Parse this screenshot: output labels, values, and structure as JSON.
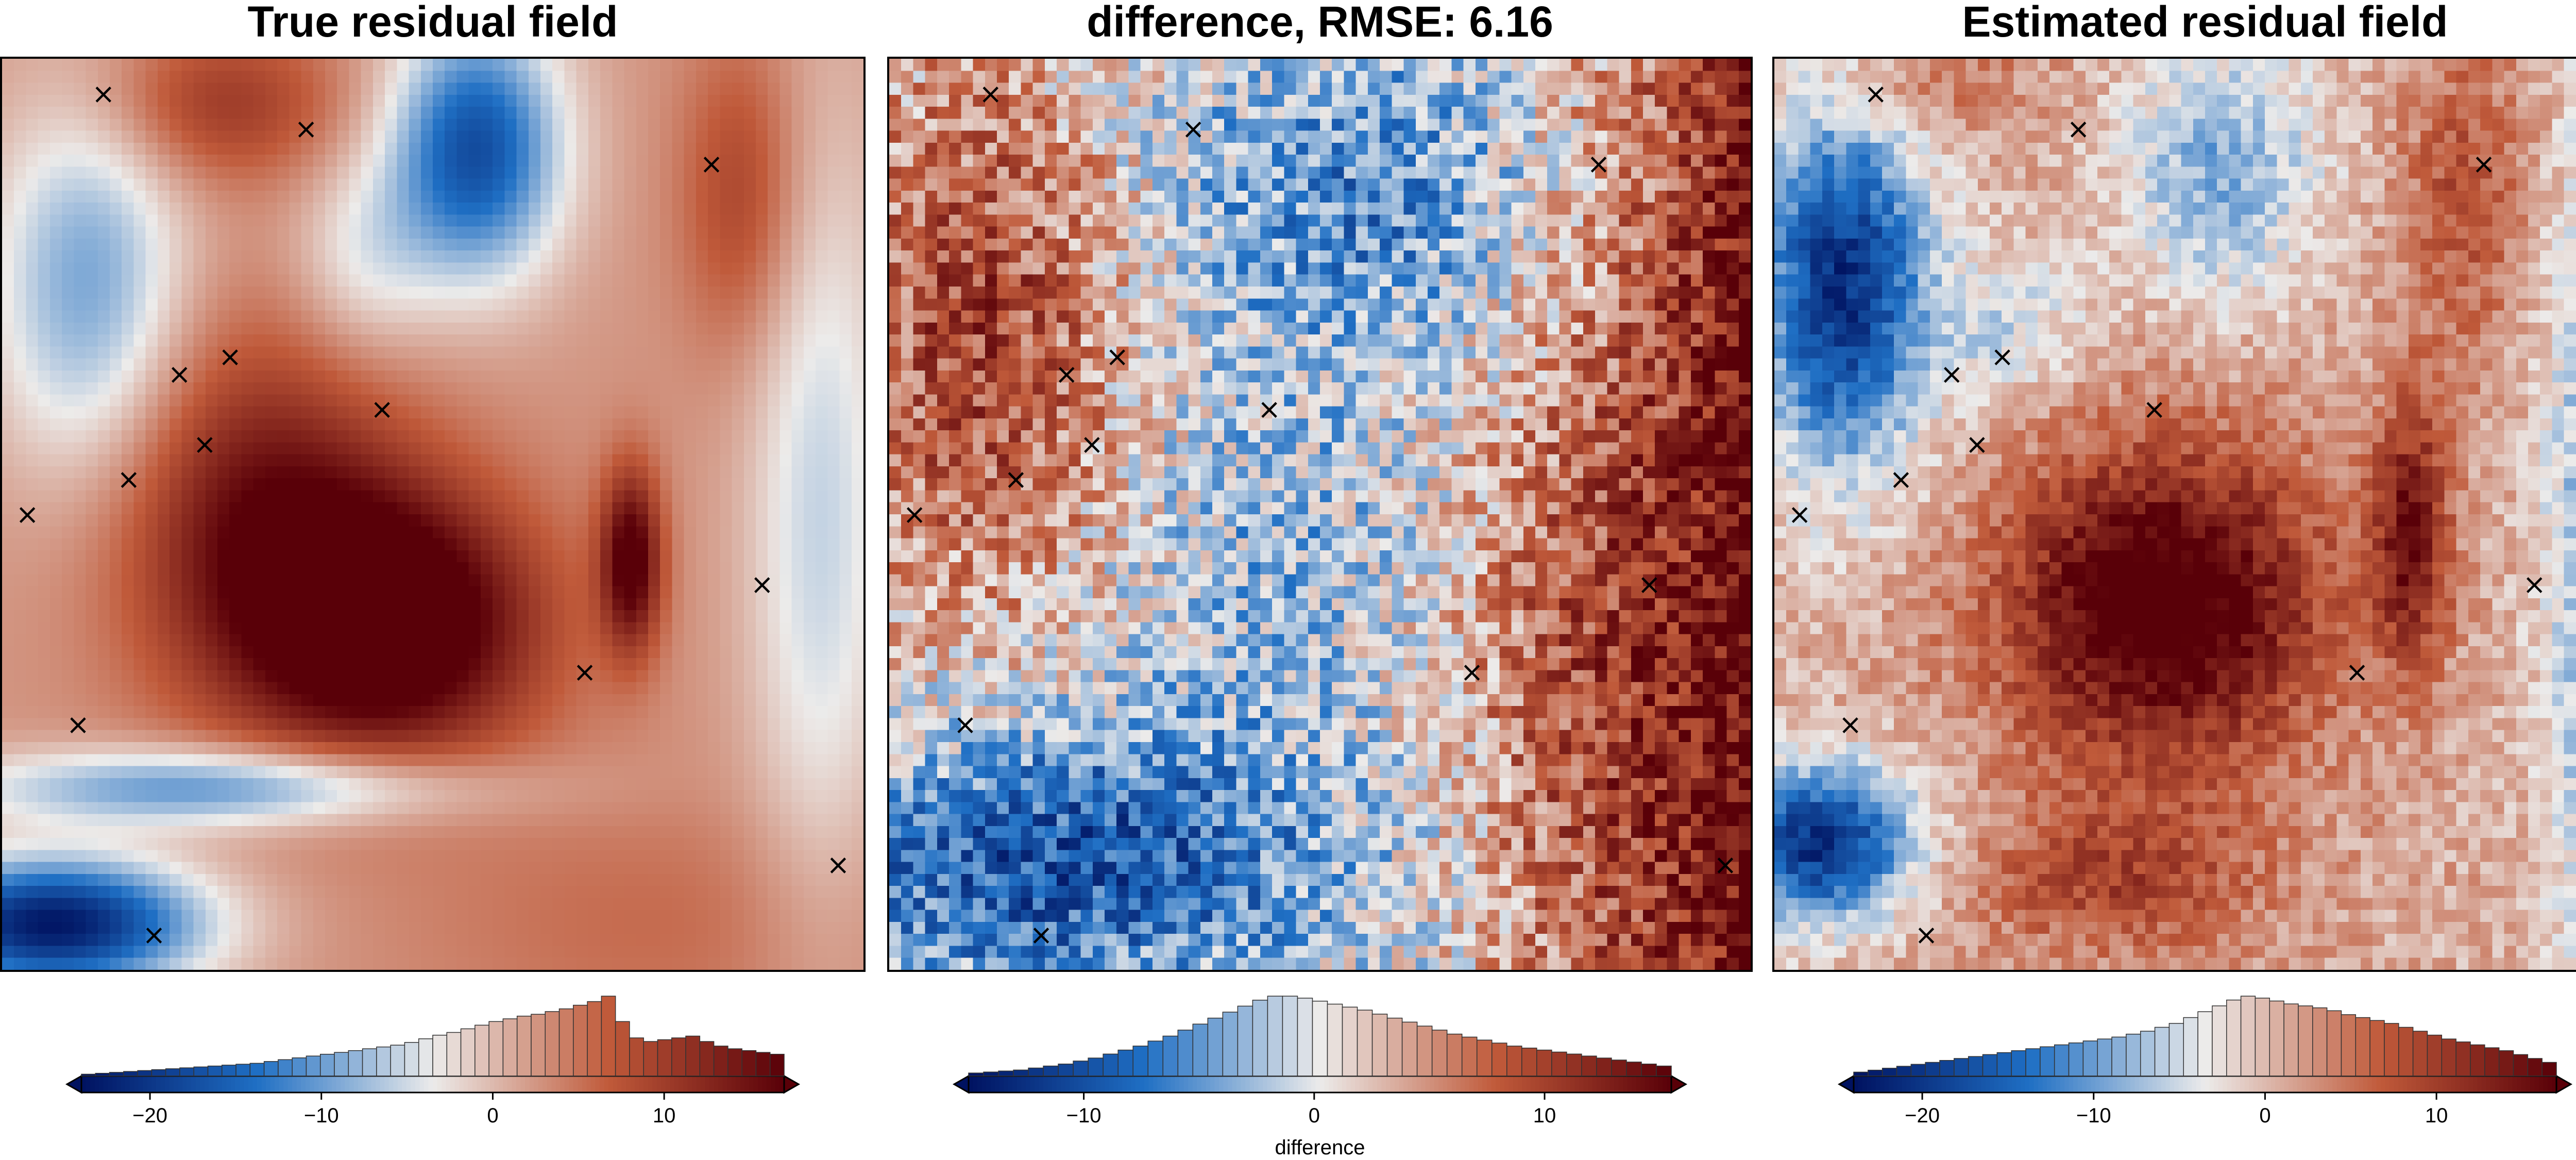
{
  "figure": {
    "panels": [
      {
        "id": "true",
        "title": "True residual field"
      },
      {
        "id": "diff",
        "title": "difference, RMSE: 6.16"
      },
      {
        "id": "est",
        "title": "Estimated residual field"
      }
    ],
    "colormap": "vik (blue-white-red diverging)",
    "colors": {
      "dark_blue": "#001260",
      "mid_blue": "#1f6fc4",
      "light": "#ecebea",
      "mid_red": "#c05a3a",
      "dark_red": "#590008"
    },
    "marker_symbol": "×"
  },
  "chart_data": [
    {
      "type": "heatmap",
      "title": "True residual field",
      "grid": false,
      "colorbar": {
        "range": [
          -24,
          17
        ],
        "ticks": [
          -20,
          -10,
          0,
          10
        ],
        "tick_labels": [
          "−20",
          "−10",
          "0",
          "10"
        ],
        "label": "",
        "extend": "both",
        "histogram": [
          2,
          3,
          4,
          5,
          6,
          7,
          8,
          9,
          10,
          11,
          12,
          13,
          14,
          16,
          18,
          20,
          22,
          24,
          26,
          28,
          30,
          32,
          34,
          37,
          41,
          45,
          48,
          52,
          56,
          60,
          63,
          66,
          68,
          71,
          74,
          78,
          82,
          88,
          60,
          42,
          38,
          40,
          42,
          44,
          38,
          33,
          30,
          28,
          26,
          24
        ]
      },
      "points": [
        [
          -21,
          19
        ],
        [
          -13,
          18
        ],
        [
          3,
          17
        ],
        [
          -18,
          11
        ],
        [
          -16,
          11.5
        ],
        [
          -10,
          10
        ],
        [
          -17,
          9
        ],
        [
          -20,
          8
        ],
        [
          -24,
          7
        ],
        [
          5,
          5
        ],
        [
          -2,
          2.5
        ],
        [
          -22,
          1
        ],
        [
          8,
          -3
        ],
        [
          -19,
          -5
        ]
      ]
    },
    {
      "type": "heatmap",
      "title": "difference, RMSE: 6.16",
      "grid": false,
      "colorbar": {
        "range": [
          -15,
          15.5
        ],
        "ticks": [
          -10,
          0,
          10
        ],
        "tick_labels": [
          "−10",
          "0",
          "10"
        ],
        "label": "difference",
        "extend": "both",
        "histogram": [
          3,
          4,
          5,
          6,
          8,
          10,
          12,
          15,
          18,
          22,
          26,
          30,
          35,
          40,
          46,
          52,
          58,
          64,
          70,
          76,
          80,
          80,
          78,
          75,
          72,
          69,
          66,
          62,
          58,
          54,
          50,
          46,
          42,
          39,
          36,
          33,
          30,
          28,
          26,
          24,
          22,
          20,
          18,
          16,
          14,
          12,
          10
        ]
      },
      "points": [
        [
          -21,
          19
        ],
        [
          -13,
          18
        ],
        [
          3,
          17
        ],
        [
          -18,
          11
        ],
        [
          -16,
          11.5
        ],
        [
          -10,
          10
        ],
        [
          -17,
          9
        ],
        [
          -20,
          8
        ],
        [
          -24,
          7
        ],
        [
          5,
          5
        ],
        [
          -2,
          2.5
        ],
        [
          -22,
          1
        ],
        [
          8,
          -3
        ],
        [
          -19,
          -5
        ]
      ]
    },
    {
      "type": "heatmap",
      "title": "Estimated residual field",
      "grid": false,
      "colorbar": {
        "range": [
          -24,
          17
        ],
        "ticks": [
          -20,
          -10,
          0,
          10
        ],
        "tick_labels": [
          "−20",
          "−10",
          "0",
          "10"
        ],
        "label": "",
        "extend": "both",
        "histogram": [
          4,
          6,
          8,
          10,
          12,
          14,
          16,
          18,
          20,
          22,
          24,
          26,
          28,
          30,
          32,
          34,
          36,
          38,
          40,
          43,
          46,
          50,
          54,
          60,
          66,
          72,
          78,
          82,
          80,
          77,
          74,
          72,
          70,
          67,
          63,
          60,
          57,
          54,
          50,
          46,
          42,
          38,
          35,
          32,
          29,
          26,
          22,
          18,
          14
        ]
      },
      "points": [
        [
          -21,
          19
        ],
        [
          -13,
          18
        ],
        [
          3,
          17
        ],
        [
          -18,
          11
        ],
        [
          -16,
          11.5
        ],
        [
          -10,
          10
        ],
        [
          -17,
          9
        ],
        [
          -20,
          8
        ],
        [
          -24,
          7
        ],
        [
          5,
          5
        ],
        [
          -2,
          2.5
        ],
        [
          -22,
          1
        ],
        [
          8,
          -3
        ],
        [
          -19,
          -5
        ]
      ]
    }
  ]
}
